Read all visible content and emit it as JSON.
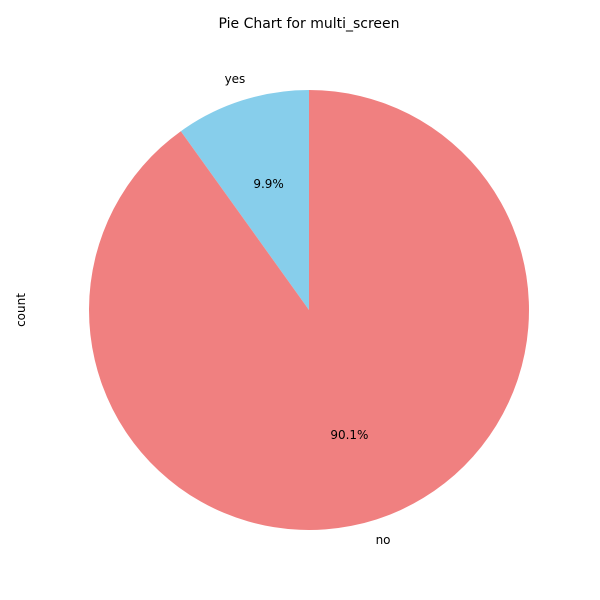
{
  "chart_data": {
    "type": "pie",
    "title": "Pie Chart for multi_screen",
    "ylabel": "count",
    "slices": [
      {
        "label": "yes",
        "percent": 9.9,
        "percent_label": "9.9%",
        "color": "#87CEEB"
      },
      {
        "label": "no",
        "percent": 90.1,
        "percent_label": "90.1%",
        "color": "#F08080"
      }
    ],
    "start_angle_deg": 90,
    "direction": "counterclockwise"
  }
}
